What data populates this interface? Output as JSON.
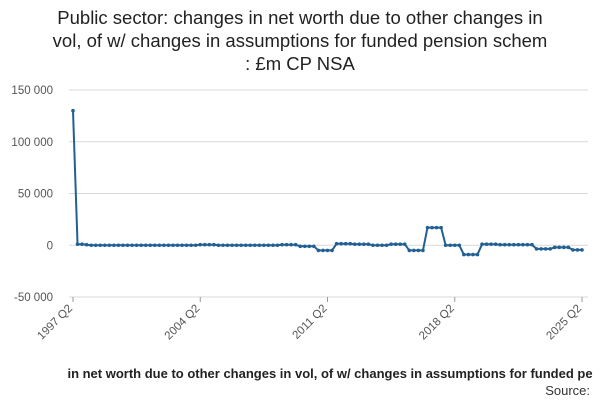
{
  "title_lines": [
    "Public sector: changes in net worth due to other changes in",
    "vol, of w/ changes in assumptions for funded pension schem",
    ": £m CP NSA"
  ],
  "legend_label": "in net worth due to other changes in vol, of w/ changes in assumptions for funded pe",
  "source_label": "Source:",
  "colors": {
    "series": "#206095",
    "grid": "#d9d9d9",
    "axis_text": "#555555"
  },
  "chart_data": {
    "type": "line",
    "title": "Public sector: changes in net worth due to other changes in vol, of w/ changes in assumptions for funded pension schem : £m CP NSA",
    "ylim": [
      -50000,
      150000
    ],
    "y_ticks": [
      -50000,
      0,
      50000,
      100000,
      150000
    ],
    "y_tick_labels": [
      "-50 000",
      "0",
      "50 000",
      "100 000",
      "150 000"
    ],
    "x_tick_labels": [
      "1997 Q2",
      "2004 Q2",
      "2011 Q2",
      "2018 Q2",
      "2025 Q2"
    ],
    "x_tick_positions": [
      0,
      28,
      56,
      84,
      112
    ],
    "grid": "horizontal",
    "series": [
      {
        "name": "",
        "start": "1997 Q2",
        "frequency": "quarterly",
        "values": [
          130000,
          1000,
          1000,
          500,
          0,
          0,
          0,
          0,
          0,
          0,
          0,
          0,
          0,
          0,
          0,
          0,
          0,
          0,
          0,
          0,
          0,
          0,
          0,
          0,
          0,
          0,
          0,
          0,
          500,
          500,
          500,
          500,
          0,
          0,
          0,
          0,
          0,
          0,
          0,
          0,
          0,
          0,
          0,
          0,
          0,
          0,
          500,
          500,
          500,
          500,
          -1000,
          -1000,
          -1000,
          -1000,
          -5000,
          -5000,
          -5000,
          -5000,
          1500,
          1500,
          1500,
          1500,
          1000,
          1000,
          1000,
          1000,
          0,
          0,
          0,
          0,
          1000,
          1000,
          1000,
          1000,
          -5000,
          -5000,
          -5000,
          -5000,
          17000,
          17000,
          17000,
          17000,
          0,
          0,
          0,
          0,
          -9000,
          -9000,
          -9000,
          -9000,
          1000,
          1000,
          1000,
          1000,
          500,
          500,
          500,
          500,
          500,
          500,
          500,
          500,
          -3500,
          -3500,
          -3500,
          -3500,
          -2000,
          -2000,
          -2000,
          -2000,
          -4500,
          -4500,
          -4500
        ]
      }
    ]
  }
}
